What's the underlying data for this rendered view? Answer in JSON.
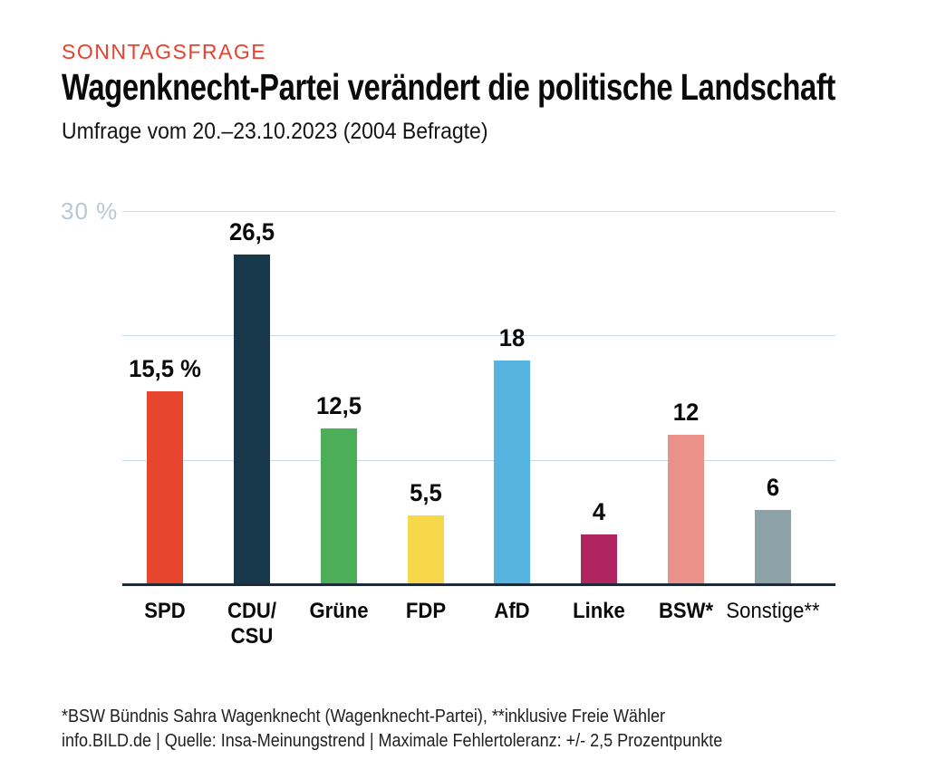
{
  "header": {
    "kicker": "SONNTAGSFRAGE",
    "title": "Wagenknecht-Partei verändert die politische Landschaft",
    "subtitle": "Umfrage vom 20.–23.10.2023 (2004 Befragte)"
  },
  "chart_data": {
    "type": "bar",
    "title": "Wagenknecht-Partei verändert die politische Landschaft",
    "subtitle": "Umfrage vom 20.–23.10.2023 (2004 Befragte)",
    "categories": [
      "SPD",
      "CDU/CSU",
      "Grüne",
      "FDP",
      "AfD",
      "Linke",
      "BSW*",
      "Sonstige**"
    ],
    "categories_display": [
      "SPD",
      "CDU/\nCSU",
      "Grüne",
      "FDP",
      "AfD",
      "Linke",
      "BSW*",
      "Sonstige**"
    ],
    "values": [
      15.5,
      26.5,
      12.5,
      5.5,
      18,
      4,
      12,
      6
    ],
    "value_labels": [
      "15,5 %",
      "26,5",
      "12,5",
      "5,5",
      "18",
      "4",
      "12",
      "6"
    ],
    "bar_colors": [
      "#e8452e",
      "#17384a",
      "#4cae58",
      "#f8d84b",
      "#55b5e0",
      "#b0255f",
      "#ea9189",
      "#8da2a7"
    ],
    "label_bold": [
      true,
      true,
      true,
      true,
      true,
      true,
      true,
      false
    ],
    "xlabel": "",
    "ylabel": "%",
    "ylim": [
      0,
      30
    ],
    "gridlines": [
      10,
      20,
      30
    ],
    "y_axis_label": "30 %",
    "grid_on": true,
    "legend": "none",
    "grid_color": "#c9dae2",
    "axis_color": "#1f2b38",
    "value_label_color": "#0a0a0a",
    "y_axis_label_color": "#b7c9d4"
  },
  "footer": {
    "line1": "*BSW Bündnis Sahra Wagenknecht (Wagenknecht-Partei), **inklusive Freie Wähler",
    "line2": "info.BILD.de | Quelle: Insa-Meinungstrend | Maximale Fehlertoleranz: +/- 2,5 Prozentpunkte"
  },
  "colors": {
    "kicker": "#e8412e",
    "background": "#ffffff",
    "text": "#0a0a0a"
  }
}
